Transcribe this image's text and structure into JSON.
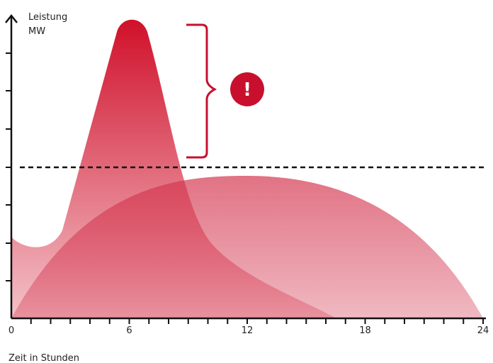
{
  "y_axis": {
    "label_lines": [
      "Leistung",
      "MW"
    ]
  },
  "x_axis": {
    "label": "Zeit in Stunden",
    "tick_labels": [
      "0",
      "6",
      "12",
      "18",
      "24"
    ]
  },
  "warning_icon": {
    "label": "!"
  }
}
